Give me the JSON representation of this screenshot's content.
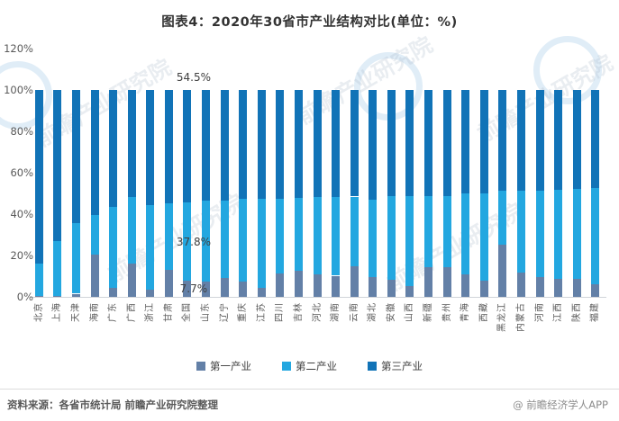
{
  "header": {
    "title": "图表4：2020年30省市产业结构对比(单位：%)"
  },
  "chart_data": {
    "type": "bar",
    "stacked": true,
    "percent_stacked": true,
    "unit": "%",
    "title": "图表4：2020年30省市产业结构对比(单位：%)",
    "categories": [
      "北京",
      "上海",
      "天津",
      "海南",
      "广东",
      "广西",
      "浙江",
      "甘肃",
      "全国",
      "山东",
      "辽宁",
      "重庆",
      "江苏",
      "四川",
      "吉林",
      "河北",
      "湖南",
      "云南",
      "湖北",
      "安徽",
      "山西",
      "新疆",
      "贵州",
      "青海",
      "西藏",
      "黑龙江",
      "内蒙古",
      "河南",
      "江西",
      "陕西",
      "福建"
    ],
    "series": [
      {
        "name": "第一产业",
        "color": "#6380A7",
        "values": [
          0.4,
          0.3,
          1.5,
          20.5,
          4.3,
          16.0,
          3.3,
          13.2,
          7.7,
          7.3,
          9.0,
          7.2,
          4.4,
          11.4,
          12.6,
          10.7,
          10.2,
          14.7,
          9.5,
          8.2,
          5.4,
          14.4,
          14.2,
          11.0,
          7.9,
          25.1,
          11.7,
          9.7,
          8.7,
          8.7,
          6.2
        ]
      },
      {
        "name": "第二产业",
        "color": "#23A7E0",
        "values": [
          15.8,
          26.6,
          34.1,
          19.1,
          39.2,
          32.1,
          40.9,
          31.9,
          37.8,
          39.1,
          37.6,
          40.0,
          43.1,
          36.2,
          35.2,
          37.6,
          38.1,
          33.8,
          37.3,
          40.5,
          43.4,
          34.5,
          34.6,
          39.1,
          42.2,
          26.3,
          39.6,
          41.6,
          43.2,
          43.4,
          46.3
        ]
      },
      {
        "name": "第三产业",
        "color": "#1173B7",
        "values": [
          83.8,
          73.1,
          64.4,
          60.4,
          56.5,
          51.9,
          55.8,
          54.9,
          54.5,
          53.6,
          53.4,
          52.8,
          52.5,
          52.4,
          52.2,
          51.7,
          51.7,
          51.5,
          53.2,
          51.3,
          51.2,
          51.1,
          51.2,
          49.9,
          49.9,
          48.6,
          48.7,
          48.7,
          48.1,
          47.9,
          47.5
        ]
      }
    ],
    "y_axis": {
      "ticks": [
        "0%",
        "20%",
        "40%",
        "60%",
        "80%",
        "100%",
        "120%"
      ],
      "min": 0,
      "max": 120,
      "step": 20,
      "grid": false
    },
    "annotations": [
      {
        "text": "54.5%",
        "category": "全国",
        "series": "第三产业"
      },
      {
        "text": "37.8%",
        "category": "全国",
        "series": "第二产业"
      },
      {
        "text": "7.7%",
        "category": "全国",
        "series": "第一产业"
      }
    ],
    "legend_position": "bottom"
  },
  "footer": {
    "source": "资料来源：各省市统计局 前瞻产业研究院整理",
    "credit": "@ 前瞻经济学人APP"
  },
  "watermark": {
    "text": "前瞻产业研究院"
  }
}
